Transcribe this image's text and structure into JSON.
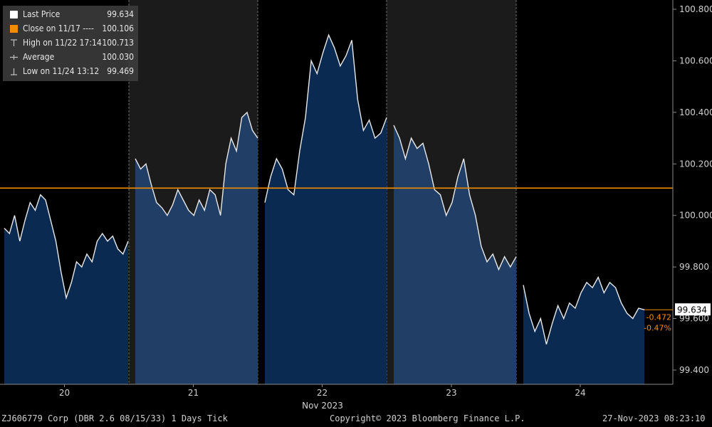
{
  "chart_data": {
    "type": "area",
    "security": "ZJ606779 Corp (DBR 2.6 08/15/33) 1 Days  Tick",
    "copyright": "Copyright© 2023 Bloomberg Finance L.P.",
    "timestamp": "27-Nov-2023 08:23:10",
    "xlabel": "Nov 2023",
    "days": [
      "20",
      "21",
      "22",
      "23",
      "24"
    ],
    "ylim": [
      99.4,
      100.8
    ],
    "yticks": [
      "99.400",
      "99.600",
      "99.800",
      "100.000",
      "100.200",
      "100.400",
      "100.600",
      "100.800"
    ],
    "close_level": 100.106,
    "last_price": "99.634",
    "change_abs": "-0.472",
    "change_pct": "-0.47%",
    "legend": [
      {
        "label": "Last Price",
        "value": "99.634",
        "symbol": "square-white"
      },
      {
        "label": "Close on 11/17 ----",
        "value": "100.106",
        "symbol": "square-orange"
      },
      {
        "label": "High on 11/22 17:14",
        "value": "100.713",
        "symbol": "high-marker"
      },
      {
        "label": "Average",
        "value": "100.030",
        "symbol": "average-marker"
      },
      {
        "label": "Low on 11/24 13:12",
        "value": "99.469",
        "symbol": "low-marker"
      }
    ],
    "series": [
      {
        "day": "20",
        "values": [
          99.95,
          99.93,
          100.0,
          99.9,
          99.98,
          100.05,
          100.02,
          100.08,
          100.06,
          99.98,
          99.9,
          99.78,
          99.68,
          99.74,
          99.82,
          99.8,
          99.85,
          99.82,
          99.9,
          99.93,
          99.9,
          99.92,
          99.87,
          99.85,
          99.9
        ]
      },
      {
        "day": "21",
        "values": [
          100.22,
          100.18,
          100.2,
          100.12,
          100.05,
          100.03,
          100.0,
          100.04,
          100.1,
          100.06,
          100.02,
          100.0,
          100.06,
          100.02,
          100.1,
          100.08,
          100.0,
          100.2,
          100.3,
          100.25,
          100.38,
          100.4,
          100.33,
          100.3
        ]
      },
      {
        "day": "22",
        "values": [
          100.05,
          100.15,
          100.22,
          100.18,
          100.1,
          100.08,
          100.25,
          100.38,
          100.6,
          100.55,
          100.63,
          100.7,
          100.65,
          100.58,
          100.62,
          100.68,
          100.45,
          100.33,
          100.37,
          100.3,
          100.32,
          100.38
        ]
      },
      {
        "day": "23",
        "values": [
          100.35,
          100.3,
          100.22,
          100.3,
          100.26,
          100.28,
          100.2,
          100.1,
          100.08,
          100.0,
          100.05,
          100.15,
          100.22,
          100.08,
          100.0,
          99.88,
          99.82,
          99.85,
          99.79,
          99.84,
          99.8,
          99.84
        ]
      },
      {
        "day": "24",
        "values": [
          99.73,
          99.62,
          99.55,
          99.6,
          99.5,
          99.58,
          99.65,
          99.6,
          99.66,
          99.64,
          99.7,
          99.74,
          99.72,
          99.76,
          99.7,
          99.74,
          99.72,
          99.66,
          99.62,
          99.6,
          99.64,
          99.634
        ]
      }
    ]
  }
}
